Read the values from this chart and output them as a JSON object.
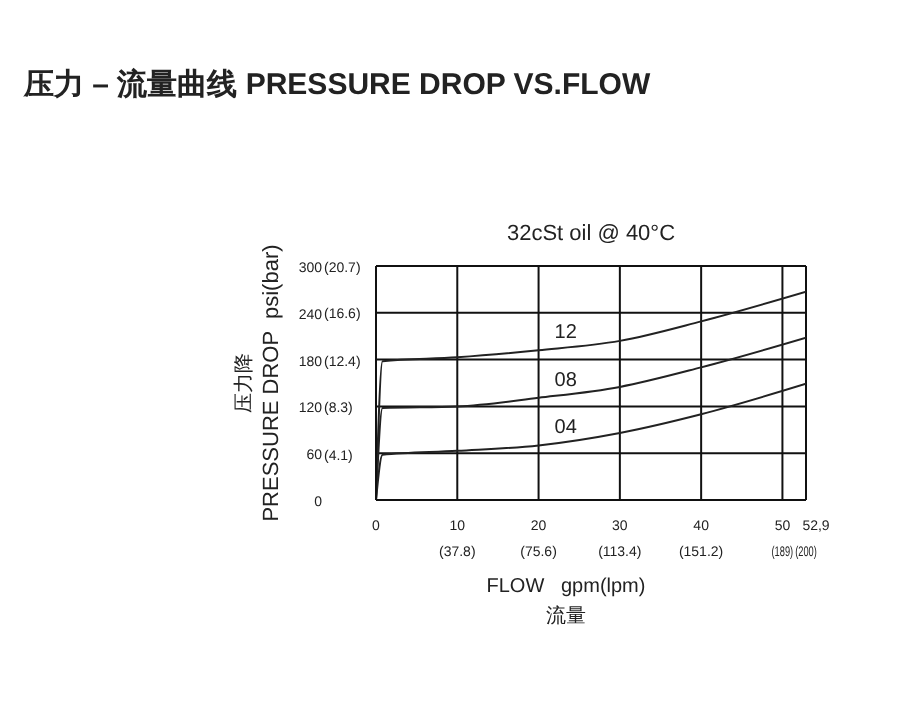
{
  "chart_data": {
    "type": "line",
    "title": "压力 – 流量曲线 PRESSURE DROP VS.FLOW",
    "subtitle": "32cSt oil @ 40°C",
    "xlabel": "FLOW   gpm(lpm)\n流量",
    "ylabel": "压力降\nPRESSURE DROP  psi(bar)",
    "xlim": [
      0,
      52.9
    ],
    "xticks": [
      0,
      10,
      20,
      30,
      40,
      50,
      {
        "value": 52.9,
        "label": "52,9"
      }
    ],
    "x2lim": [
      0,
      200
    ],
    "x2ticks": [
      {
        "value": 37.8,
        "label": "(37.8)"
      },
      {
        "value": 75.6,
        "label": "(75.6)"
      },
      {
        "value": 113.4,
        "label": "(113.4)"
      },
      {
        "value": 151.2,
        "label": "(151.2)"
      },
      {
        "value": 189,
        "label": "(189)"
      },
      {
        "value": 200,
        "label": "(200)"
      }
    ],
    "ylim": [
      0,
      300
    ],
    "yticks": [
      0,
      60,
      120,
      180,
      240,
      300
    ],
    "y2lim": [
      0,
      20.7
    ],
    "y2ticks": [
      {
        "value": 4.1,
        "label": "(4.1)"
      },
      {
        "value": 8.3,
        "label": "(8.3)"
      },
      {
        "value": 12.4,
        "label": "(12.4)"
      },
      {
        "value": 16.6,
        "label": "(16.6)"
      },
      {
        "value": 20.7,
        "label": "(20.7)"
      }
    ],
    "grid": true,
    "legend": false,
    "marker": "none",
    "line_style": "solid",
    "x": [
      0,
      0.8,
      10,
      20,
      30,
      40,
      52.9
    ],
    "series": [
      {
        "name": "12",
        "color": "#222222",
        "values": [
          0,
          178,
          183,
          192,
          204,
          229,
          267
        ]
      },
      {
        "name": "08",
        "color": "#222222",
        "values": [
          0,
          118,
          120,
          131,
          145,
          170,
          208
        ]
      },
      {
        "name": "04",
        "color": "#222222",
        "values": [
          0,
          58,
          63,
          70,
          86,
          110,
          149
        ]
      }
    ]
  }
}
